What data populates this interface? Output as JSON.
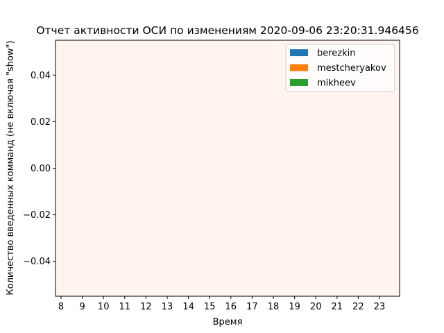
{
  "chart_data": {
    "type": "bar",
    "title": "Отчет активности ОСИ по изменениям 2020-09-06 23:20:31.946456",
    "xlabel": "Время",
    "ylabel": "Количество введенных комманд (не включая \"show\")",
    "categories": [
      "8",
      "9",
      "10",
      "11",
      "12",
      "13",
      "14",
      "15",
      "16",
      "17",
      "18",
      "19",
      "20",
      "21",
      "22",
      "23"
    ],
    "ylim": [
      -0.055,
      0.055
    ],
    "yticks": [
      "0.04",
      "0.02",
      "0.00",
      "−0.02",
      "−0.04"
    ],
    "ytick_values": [
      0.04,
      0.02,
      0.0,
      -0.02,
      -0.04
    ],
    "series": [
      {
        "name": "berezkin",
        "values": [
          0,
          0,
          0,
          0,
          0,
          0,
          0,
          0,
          0,
          0,
          0,
          0,
          0,
          0,
          0,
          0
        ],
        "color": "#1f77b4"
      },
      {
        "name": "mestcheryakov",
        "values": [
          0,
          0,
          0,
          0,
          0,
          0,
          0,
          0,
          0,
          0,
          0,
          0,
          0,
          0,
          0,
          0
        ],
        "color": "#ff7f0e"
      },
      {
        "name": "mikheev",
        "values": [
          0,
          0,
          0,
          0,
          0,
          0,
          0,
          0,
          0,
          0,
          0,
          0,
          0,
          0,
          0,
          0
        ],
        "color": "#2ca02c"
      }
    ],
    "legend_position": "top-right",
    "background_color": "#fff5ee",
    "grid": false
  }
}
